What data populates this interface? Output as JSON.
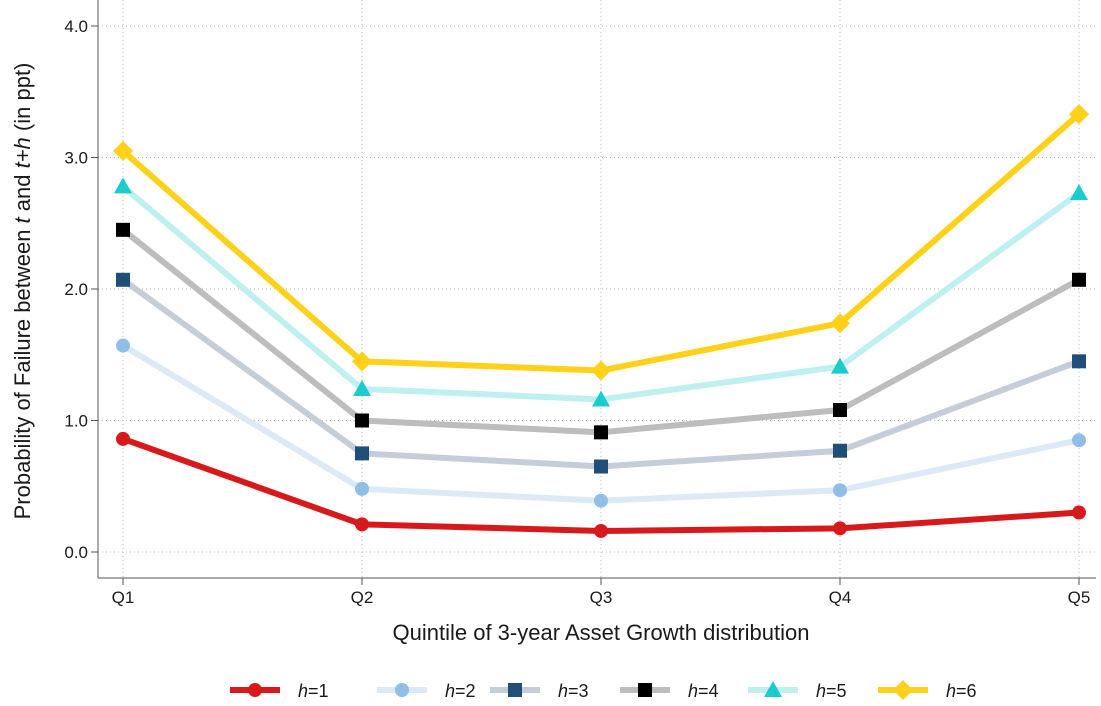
{
  "chart_data": {
    "type": "line",
    "categories": [
      "Q1",
      "Q2",
      "Q3",
      "Q4",
      "Q5"
    ],
    "ylim": [
      0,
      4
    ],
    "yticks": [
      "0.0",
      "1.0",
      "2.0",
      "3.0",
      "4.0"
    ],
    "ylabel": {
      "parts": [
        {
          "text": "Probability of Failure between ",
          "italic": false
        },
        {
          "text": "t",
          "italic": true
        },
        {
          "text": " and ",
          "italic": false
        },
        {
          "text": "t+h",
          "italic": true
        },
        {
          "text": " (in ppt)",
          "italic": false
        }
      ]
    },
    "xlabel": "Quintile of 3-year Asset Growth distribution",
    "grid": true,
    "legend_position": "bottom",
    "series": [
      {
        "name_italic": "h",
        "name_rest": "=1",
        "values": [
          0.86,
          0.21,
          0.16,
          0.18,
          0.3
        ],
        "line_color": "#d7191c",
        "marker_color": "#d7191c",
        "marker": "circle"
      },
      {
        "name_italic": "h",
        "name_rest": "=2",
        "values": [
          1.57,
          0.48,
          0.39,
          0.47,
          0.85
        ],
        "line_color": "#dceaf7",
        "marker_color": "#8fbfe6",
        "marker": "circle"
      },
      {
        "name_italic": "h",
        "name_rest": "=3",
        "values": [
          2.07,
          0.75,
          0.65,
          0.77,
          1.45
        ],
        "line_color": "#c5ced8",
        "marker_color": "#1f4e79",
        "marker": "square"
      },
      {
        "name_italic": "h",
        "name_rest": "=4",
        "values": [
          2.45,
          1.0,
          0.91,
          1.08,
          2.07
        ],
        "line_color": "#bdbdbd",
        "marker_color": "#000000",
        "marker": "square"
      },
      {
        "name_italic": "h",
        "name_rest": "=5",
        "values": [
          2.78,
          1.24,
          1.16,
          1.41,
          2.73
        ],
        "line_color": "#bff0f0",
        "marker_color": "#1ccccc",
        "marker": "triangle"
      },
      {
        "name_italic": "h",
        "name_rest": "=6",
        "values": [
          3.05,
          1.45,
          1.38,
          1.74,
          3.33
        ],
        "line_color": "#ffd11a",
        "marker_color": "#ffd11a",
        "marker": "diamond"
      }
    ]
  }
}
